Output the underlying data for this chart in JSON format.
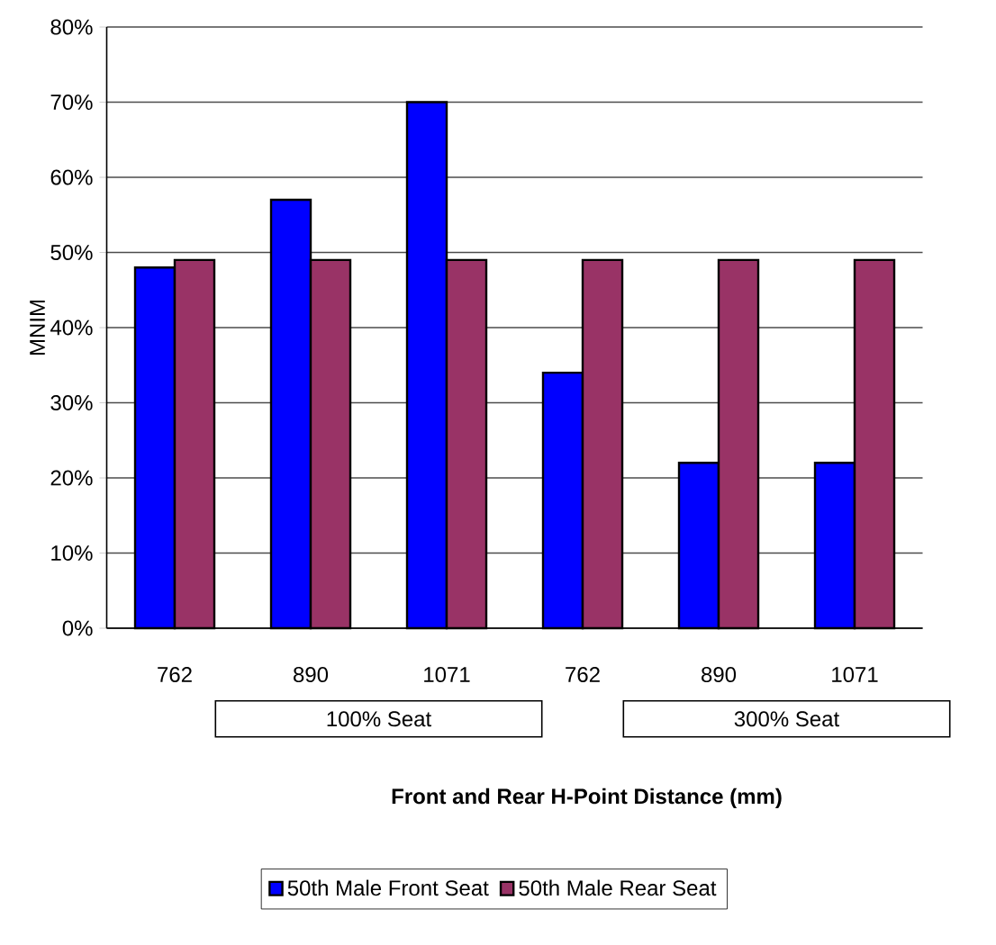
{
  "chart_data": {
    "type": "bar",
    "ylabel": "MNIM",
    "xlabel": "Front and Rear H-Point Distance (mm)",
    "categories": [
      "762",
      "890",
      "1071",
      "762",
      "890",
      "1071"
    ],
    "series": [
      {
        "name": "50th Male Front Seat",
        "color": "#0000ff",
        "values": [
          48,
          57,
          70,
          34,
          22,
          22
        ]
      },
      {
        "name": "50th Male Rear Seat",
        "color": "#993366",
        "values": [
          49,
          49,
          49,
          49,
          49,
          49
        ]
      }
    ],
    "annotations": [
      "100% Seat",
      "300% Seat"
    ],
    "ylim": [
      0,
      80
    ],
    "yticks": [
      {
        "value": 0,
        "label": "0%"
      },
      {
        "value": 10,
        "label": "10%"
      },
      {
        "value": 20,
        "label": "20%"
      },
      {
        "value": 30,
        "label": "30%"
      },
      {
        "value": 40,
        "label": "40%"
      },
      {
        "value": 50,
        "label": "50%"
      },
      {
        "value": 60,
        "label": "60%"
      },
      {
        "value": 70,
        "label": "70%"
      },
      {
        "value": 80,
        "label": "80%"
      }
    ],
    "grid": "y",
    "legend": "bottom"
  }
}
